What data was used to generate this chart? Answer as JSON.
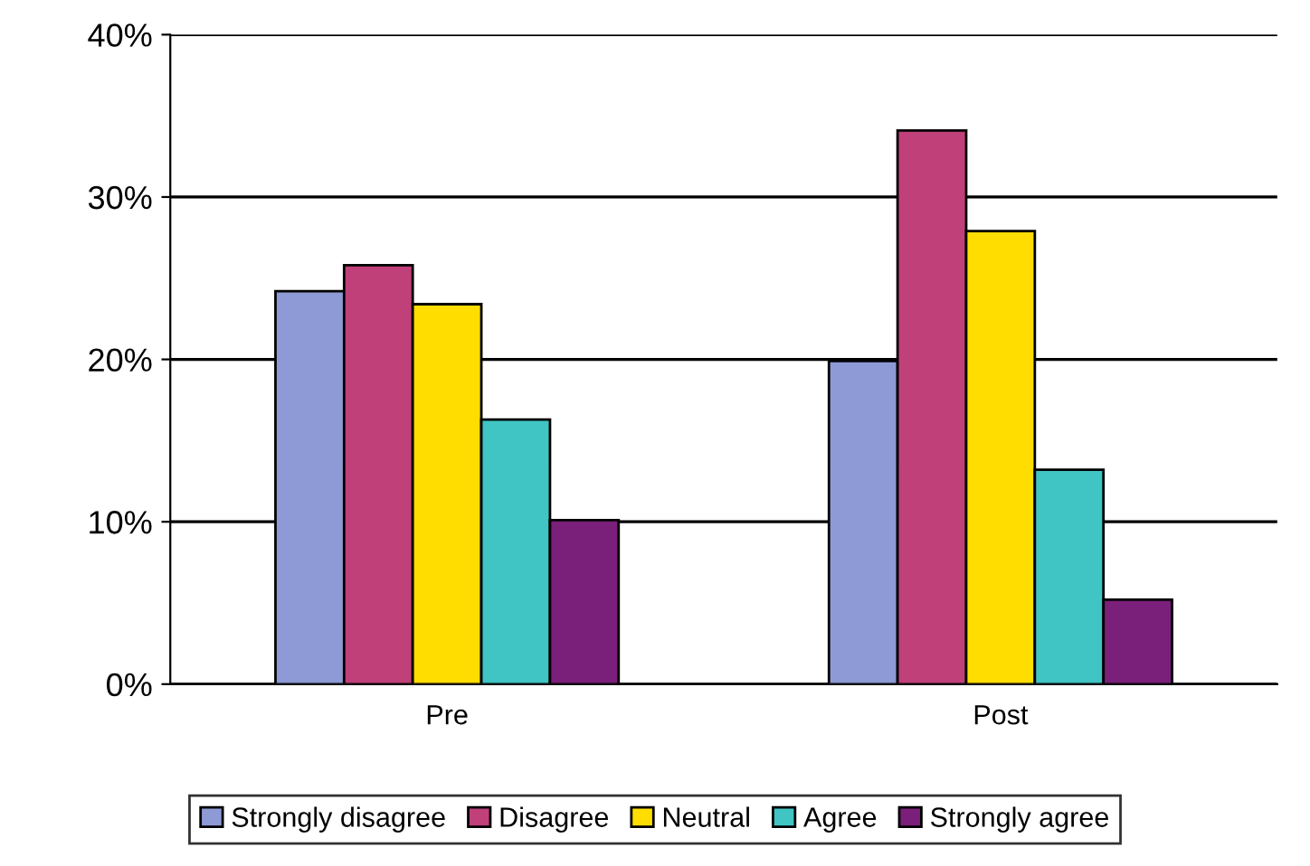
{
  "chart_data": {
    "type": "bar",
    "categories": [
      "Pre",
      "Post"
    ],
    "series": [
      {
        "name": "Strongly disagree",
        "color": "#8e9ad6",
        "values": [
          24.2,
          19.9
        ]
      },
      {
        "name": "Disagree",
        "color": "#c0407a",
        "values": [
          25.8,
          34.1
        ]
      },
      {
        "name": "Neutral",
        "color": "#ffdd00",
        "values": [
          23.4,
          27.9
        ]
      },
      {
        "name": "Agree",
        "color": "#40c4c4",
        "values": [
          16.3,
          13.2
        ]
      },
      {
        "name": "Strongly agree",
        "color": "#7a1f7a",
        "values": [
          10.1,
          5.2
        ]
      }
    ],
    "ylim": [
      0,
      40
    ],
    "yticks": [
      {
        "value": 0,
        "label": "0%"
      },
      {
        "value": 10,
        "label": "10%"
      },
      {
        "value": 20,
        "label": "20%"
      },
      {
        "value": 30,
        "label": "30%"
      },
      {
        "value": 40,
        "label": "40%"
      }
    ],
    "grid": "y",
    "legend": "bottom"
  }
}
